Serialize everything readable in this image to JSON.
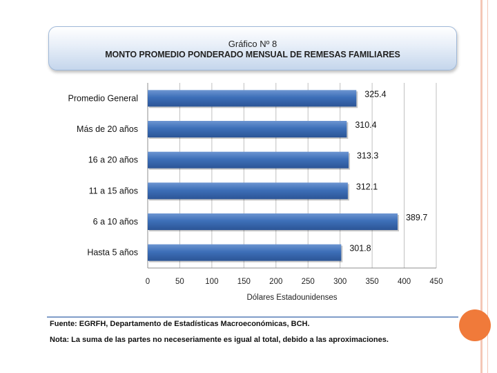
{
  "chart_data": {
    "type": "bar",
    "orientation": "horizontal",
    "title": "Gráfico Nº 8",
    "subtitle": "MONTO PROMEDIO PONDERADO MENSUAL DE REMESAS FAMILIARES",
    "xlabel": "Dólares Estadounidenses",
    "ylabel": "",
    "categories": [
      "Promedio General",
      "Más de 20 años",
      "16 a 20 años",
      "11 a 15 años",
      "6 a 10 años",
      "Hasta 5 años"
    ],
    "values": [
      325.4,
      310.4,
      313.3,
      312.1,
      389.7,
      301.8
    ],
    "value_labels": [
      "325.4",
      "310.4",
      "313.3",
      "312.1",
      "389.7",
      "301.8"
    ],
    "xlim": [
      0,
      450
    ],
    "x_ticks": [
      "0",
      "50",
      "100",
      "150",
      "200",
      "250",
      "300",
      "350",
      "400",
      "450"
    ],
    "grid": true,
    "bar_color": "#3d6fb8"
  },
  "footer": {
    "source": "Fuente: EGRFH, Departamento de Estadísticas Macroeconómicas, BCH.",
    "note": "Nota: La suma de las partes no neceseriamente es igual al total, debido a las aproximaciones."
  }
}
